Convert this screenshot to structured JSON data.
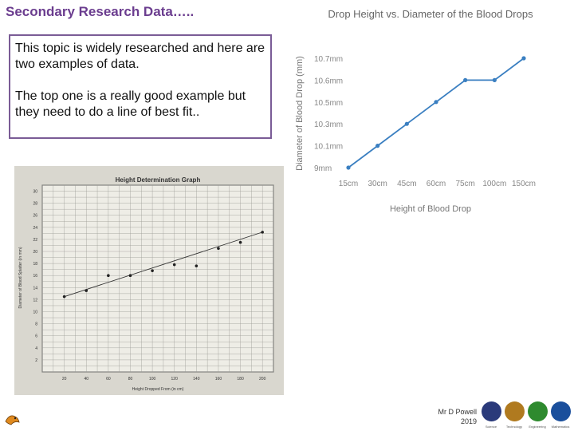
{
  "slide": {
    "title": "Secondary Research Data…..",
    "text_line1": "This topic is widely researched and here are two examples of data.",
    "text_line2": "The top one is a really good example but they need to do a line of best fit..",
    "author_name": "Mr D Powell",
    "author_year": "2019",
    "logos": [
      {
        "name": "science",
        "caption": "Science",
        "color": "#2a3a7a"
      },
      {
        "name": "technology",
        "caption": "Technology",
        "color": "#b07a1f"
      },
      {
        "name": "engineering",
        "caption": "Engineering",
        "color": "#2e8a2e"
      },
      {
        "name": "mathematics",
        "caption": "Mathematics",
        "color": "#1a4f9c"
      }
    ]
  },
  "chart_data": [
    {
      "type": "line",
      "title": "Drop Height vs. Diameter of the Blood Drops",
      "xlabel": "Height of Blood Drop",
      "ylabel": "Diameter of Blood Drop (mm)",
      "categories": [
        "15cm",
        "30cm",
        "45cm",
        "60cm",
        "75cm",
        "100cm",
        "150cm"
      ],
      "y_ticks": [
        "9mm",
        "10.1mm",
        "10.3mm",
        "10.5mm",
        "10.6mm",
        "10.7mm"
      ],
      "values": [
        "9mm",
        "10.1mm",
        "10.3mm",
        "10.5mm",
        "10.6mm",
        "10.6mm",
        "10.7mm"
      ],
      "line_color": "#3a7fc1",
      "grid": false
    },
    {
      "type": "scatter",
      "title": "Height Determination Graph",
      "xlabel": "Height Dropped From (in cm)",
      "ylabel": "Diameter of Blood Splatter (in mm)",
      "x_ticks": [
        20,
        40,
        60,
        80,
        100,
        120,
        140,
        160,
        180,
        200
      ],
      "y_ticks": [
        2,
        4,
        6,
        8,
        10,
        12,
        14,
        16,
        18,
        20,
        22,
        24,
        26,
        28,
        30
      ],
      "xlim": [
        0,
        210
      ],
      "ylim": [
        0,
        31
      ],
      "x": [
        20,
        40,
        60,
        80,
        100,
        120,
        140,
        160,
        180,
        200
      ],
      "y": [
        12.5,
        13.5,
        16,
        16,
        16.8,
        17.8,
        17.6,
        20.5,
        21.5,
        23.2
      ],
      "trendline": [
        [
          20,
          12.5
        ],
        [
          200,
          23.2
        ]
      ],
      "grid": true
    }
  ]
}
